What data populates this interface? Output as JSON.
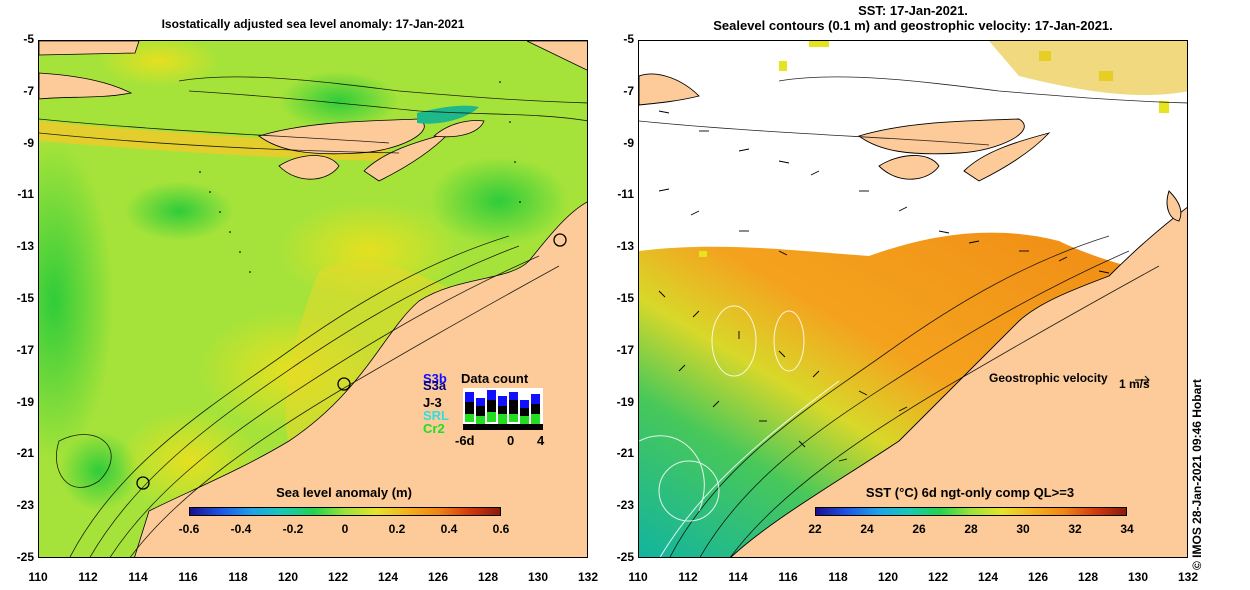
{
  "left_panel": {
    "title": "Isostatically adjusted sea level anomaly: 17-Jan-2021",
    "colorbar": {
      "title": "Sea level anomaly (m)",
      "ticks": [
        "-0.6",
        "-0.4",
        "-0.2",
        "0",
        "0.2",
        "0.4",
        "0.6"
      ]
    },
    "data_count": {
      "title": "Data count",
      "satellites": [
        {
          "name": "S3b",
          "color": "#1010ff"
        },
        {
          "name": "S3a",
          "color": "#000080"
        },
        {
          "name": "J-3",
          "color": "#000000"
        },
        {
          "name": "SRL",
          "color": "#33dddd"
        },
        {
          "name": "Cr2",
          "color": "#22dd22"
        }
      ],
      "x_ticks": [
        "-6d",
        "0",
        "4"
      ]
    }
  },
  "right_panel": {
    "title_line1": "SST: 17-Jan-2021.",
    "title_line2": "Sealevel contours (0.1 m) and geostrophic velocity: 17-Jan-2021.",
    "velocity_legend": "Geostrophic velocity",
    "velocity_unit": "1 m/s",
    "colorbar": {
      "title": "SST (°C) 6d ngt-only comp QL>=3",
      "ticks": [
        "22",
        "24",
        "26",
        "28",
        "30",
        "32",
        "34"
      ]
    }
  },
  "y_ticks": [
    "-5",
    "-7",
    "-9",
    "-11",
    "-13",
    "-15",
    "-17",
    "-19",
    "-21",
    "-23",
    "-25"
  ],
  "x_ticks": [
    "110",
    "112",
    "114",
    "116",
    "118",
    "120",
    "122",
    "124",
    "126",
    "128",
    "130",
    "132"
  ],
  "credit": "© IMOS 28-Jan-2021 09:46 Hobart",
  "colors": {
    "land": "#fccb99",
    "ssla_background": "#a6e33a",
    "sst_warm": "#f4a21e",
    "sst_cold": "#12b4a0"
  }
}
